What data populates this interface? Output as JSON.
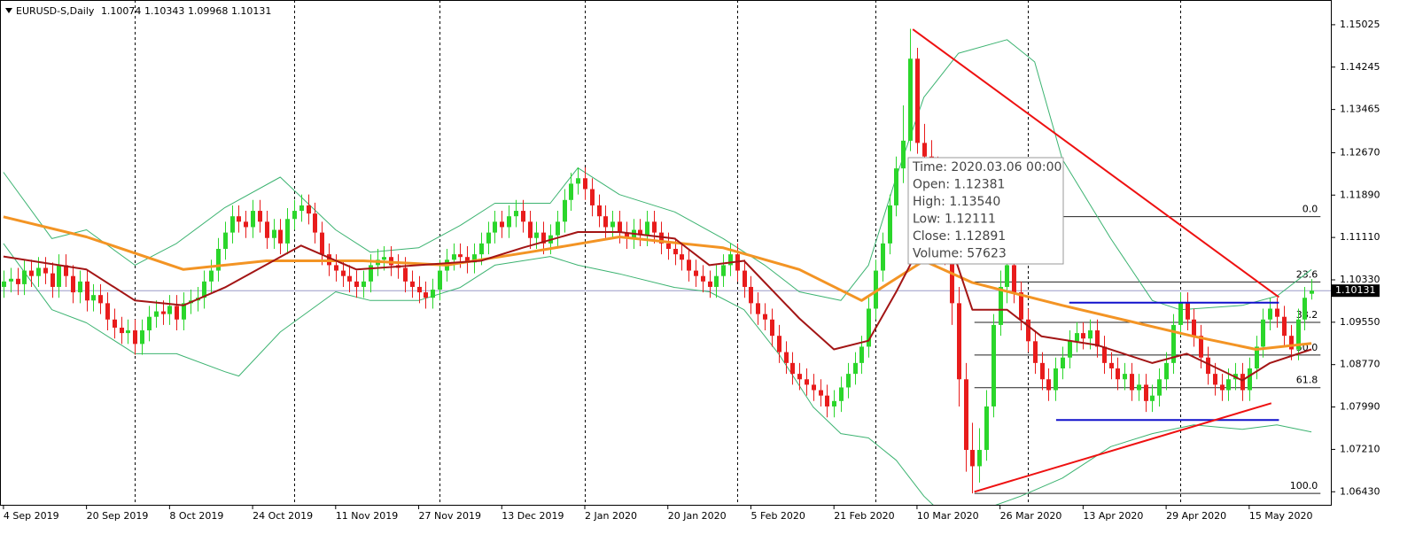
{
  "chart_data": {
    "type": "candlestick",
    "title": "EURUSD-S,Daily",
    "categories": [
      "4 Sep 2019",
      null,
      null,
      null,
      null,
      null,
      null,
      null,
      null,
      null,
      null,
      null,
      "20 Sep 2019",
      null,
      null,
      null,
      null,
      null,
      null,
      null,
      null,
      null,
      null,
      null,
      "8 Oct 2019",
      null,
      null,
      null,
      null,
      null,
      null,
      null,
      null,
      null,
      null,
      null,
      "24 Oct 2019",
      null,
      null,
      null,
      null,
      null,
      null,
      null,
      null,
      null,
      null,
      null,
      "11 Nov 2019",
      null,
      null,
      null,
      null,
      null,
      null,
      null,
      null,
      null,
      null,
      null,
      "27 Nov 2019",
      null,
      null,
      null,
      null,
      null,
      null,
      null,
      null,
      null,
      null,
      null,
      "13 Dec 2019",
      null,
      null,
      null,
      null,
      null,
      null,
      null,
      null,
      null,
      null,
      null,
      "2 Jan 2020",
      null,
      null,
      null,
      null,
      null,
      null,
      null,
      null,
      null,
      null,
      null,
      "20 Jan 2020",
      null,
      null,
      null,
      null,
      null,
      null,
      null,
      null,
      null,
      null,
      null,
      "5 Feb 2020",
      null,
      null,
      null,
      null,
      null,
      null,
      null,
      null,
      null,
      null,
      null,
      "21 Feb 2020",
      null,
      null,
      null,
      null,
      null,
      null,
      null,
      null,
      null,
      null,
      null,
      "10 Mar 2020",
      null,
      null,
      null,
      null,
      null,
      null,
      null,
      null,
      null,
      null,
      null,
      "26 Mar 2020",
      null,
      null,
      null,
      null,
      null,
      null,
      null,
      null,
      null,
      null,
      null,
      "13 Apr 2020",
      null,
      null,
      null,
      null,
      null,
      null,
      null,
      null,
      null,
      null,
      null,
      "29 Apr 2020",
      null,
      null,
      null,
      null,
      null,
      null,
      null,
      null,
      null,
      null,
      null,
      "15 May 2020",
      null,
      null,
      null,
      null,
      null,
      null,
      null,
      null,
      null
    ],
    "open": [
      1.102,
      1.103,
      1.1035,
      1.1025,
      1.105,
      1.104,
      1.1055,
      1.1045,
      1.102,
      1.106,
      1.104,
      1.101,
      1.103,
      1.0995,
      1.1005,
      1.099,
      1.096,
      1.0945,
      1.0935,
      1.094,
      1.0915,
      1.094,
      1.0965,
      1.0975,
      1.097,
      1.0985,
      1.096,
      1.099,
      1.0995,
      1.1,
      1.103,
      1.105,
      1.109,
      1.112,
      1.115,
      1.114,
      1.113,
      1.116,
      1.114,
      1.111,
      1.1125,
      1.11,
      1.1145,
      1.116,
      1.117,
      1.1155,
      1.112,
      1.108,
      1.106,
      1.105,
      1.104,
      1.103,
      1.102,
      1.103,
      1.106,
      1.107,
      1.1075,
      1.106,
      1.1055,
      1.103,
      1.102,
      1.101,
      1.1,
      1.1015,
      1.105,
      1.107,
      1.108,
      1.1075,
      1.1065,
      1.108,
      1.11,
      1.112,
      1.114,
      1.113,
      1.115,
      1.116,
      1.114,
      1.111,
      1.112,
      1.11,
      1.1115,
      1.114,
      1.118,
      1.121,
      1.122,
      1.12,
      1.117,
      1.115,
      1.113,
      1.114,
      1.112,
      1.111,
      1.1125,
      1.1115,
      1.114,
      1.112,
      1.11,
      1.109,
      1.108,
      1.107,
      1.105,
      1.104,
      1.103,
      1.102,
      1.104,
      1.106,
      1.108,
      1.105,
      1.102,
      1.099,
      1.097,
      1.096,
      1.093,
      1.09,
      1.088,
      1.086,
      1.085,
      1.084,
      1.083,
      1.082,
      1.08,
      1.081,
      1.0835,
      1.086,
      1.088,
      1.091,
      1.098,
      1.105,
      1.11,
      1.117,
      1.12381,
      1.1289,
      1.144,
      1.1285,
      1.126,
      1.124,
      1.119,
      1.11,
      1.099,
      1.085,
      1.072,
      1.069,
      1.072,
      1.08,
      1.095,
      1.102,
      1.106,
      1.101,
      1.096,
      1.092,
      1.088,
      1.085,
      1.083,
      1.087,
      1.089,
      1.092,
      1.0935,
      1.0925,
      1.094,
      1.091,
      1.088,
      1.087,
      1.085,
      1.086,
      1.083,
      1.084,
      1.081,
      1.082,
      1.085,
      1.088,
      1.095,
      1.099,
      1.096,
      1.093,
      1.089,
      1.086,
      1.084,
      1.083,
      1.085,
      1.086,
      1.083,
      1.087,
      1.091,
      1.096,
      1.098,
      1.0965,
      1.093,
      1.0905,
      1.096,
      1.10074
    ],
    "high": [
      1.105,
      1.1055,
      1.1055,
      1.107,
      1.107,
      1.1075,
      1.1075,
      1.1065,
      1.108,
      1.108,
      1.106,
      1.105,
      1.105,
      1.1025,
      1.1025,
      1.101,
      1.098,
      1.0965,
      1.096,
      1.096,
      1.096,
      1.0985,
      1.0995,
      1.0995,
      1.1005,
      1.1005,
      1.101,
      1.1015,
      1.102,
      1.105,
      1.107,
      1.111,
      1.114,
      1.117,
      1.117,
      1.116,
      1.118,
      1.118,
      1.116,
      1.1145,
      1.1145,
      1.1165,
      1.118,
      1.119,
      1.119,
      1.1175,
      1.114,
      1.11,
      1.108,
      1.107,
      1.106,
      1.105,
      1.105,
      1.108,
      1.109,
      1.1095,
      1.1095,
      1.108,
      1.1075,
      1.105,
      1.104,
      1.103,
      1.1035,
      1.107,
      1.109,
      1.11,
      1.11,
      1.1095,
      1.11,
      1.112,
      1.114,
      1.116,
      1.116,
      1.117,
      1.118,
      1.118,
      1.116,
      1.114,
      1.114,
      1.1135,
      1.116,
      1.12,
      1.123,
      1.124,
      1.124,
      1.122,
      1.119,
      1.117,
      1.116,
      1.116,
      1.114,
      1.1145,
      1.1145,
      1.116,
      1.116,
      1.114,
      1.112,
      1.111,
      1.11,
      1.109,
      1.107,
      1.106,
      1.105,
      1.106,
      1.108,
      1.11,
      1.11,
      1.107,
      1.104,
      1.101,
      1.099,
      1.098,
      1.095,
      1.092,
      1.09,
      1.088,
      1.087,
      1.086,
      1.085,
      1.084,
      1.083,
      1.0855,
      1.088,
      1.09,
      1.093,
      1.1,
      1.107,
      1.112,
      1.119,
      1.126,
      1.1354,
      1.1495,
      1.146,
      1.132,
      1.129,
      1.126,
      1.121,
      1.112,
      1.102,
      1.088,
      1.077,
      1.076,
      1.083,
      1.097,
      1.105,
      1.108,
      1.108,
      1.103,
      1.098,
      1.094,
      1.09,
      1.087,
      1.089,
      1.091,
      1.094,
      1.0955,
      1.0955,
      1.096,
      1.096,
      1.093,
      1.09,
      1.089,
      1.088,
      1.088,
      1.086,
      1.086,
      1.084,
      1.087,
      1.09,
      1.097,
      1.101,
      1.101,
      1.098,
      1.095,
      1.091,
      1.088,
      1.086,
      1.087,
      1.088,
      1.088,
      1.089,
      1.093,
      1.098,
      1.1,
      1.1,
      1.0985,
      1.095,
      1.098,
      1.102,
      1.10343
    ],
    "low": [
      1.1,
      1.101,
      1.1005,
      1.1005,
      1.102,
      1.102,
      1.1025,
      1.1,
      1.1,
      1.102,
      1.099,
      1.099,
      1.0975,
      1.0975,
      1.097,
      1.094,
      1.0925,
      1.0915,
      1.0915,
      1.0895,
      1.0895,
      1.092,
      1.0945,
      1.095,
      1.095,
      1.094,
      1.094,
      1.097,
      1.0975,
      1.098,
      1.101,
      1.103,
      1.107,
      1.11,
      1.112,
      1.111,
      1.111,
      1.112,
      1.109,
      1.109,
      1.108,
      1.108,
      1.1125,
      1.114,
      1.1135,
      1.11,
      1.106,
      1.104,
      1.103,
      1.102,
      1.101,
      1.1,
      1.1,
      1.101,
      1.104,
      1.105,
      1.104,
      1.1035,
      1.101,
      1.1,
      1.099,
      1.098,
      1.098,
      1.0995,
      1.103,
      1.105,
      1.1055,
      1.1045,
      1.1045,
      1.106,
      1.108,
      1.11,
      1.111,
      1.111,
      1.113,
      1.112,
      1.109,
      1.109,
      1.108,
      1.108,
      1.1095,
      1.112,
      1.116,
      1.119,
      1.118,
      1.115,
      1.113,
      1.111,
      1.111,
      1.11,
      1.109,
      1.109,
      1.1095,
      1.1095,
      1.11,
      1.108,
      1.107,
      1.106,
      1.105,
      1.103,
      1.102,
      1.101,
      1.1,
      1.1,
      1.102,
      1.104,
      1.103,
      1.1,
      1.097,
      1.095,
      1.094,
      1.091,
      1.088,
      1.086,
      1.084,
      1.083,
      1.082,
      1.081,
      1.08,
      1.078,
      1.078,
      1.079,
      1.0815,
      1.084,
      1.086,
      1.089,
      1.096,
      1.103,
      1.108,
      1.115,
      1.12111,
      1.127,
      1.1265,
      1.124,
      1.12,
      1.116,
      1.106,
      1.095,
      1.08,
      1.068,
      1.064,
      1.066,
      1.07,
      1.078,
      1.093,
      1.099,
      1.099,
      1.094,
      1.09,
      1.086,
      1.083,
      1.081,
      1.081,
      1.085,
      1.087,
      1.09,
      1.0905,
      1.0905,
      1.089,
      1.086,
      1.085,
      1.083,
      1.083,
      1.081,
      1.081,
      1.079,
      1.079,
      1.08,
      1.083,
      1.086,
      1.093,
      1.094,
      1.091,
      1.087,
      1.084,
      1.082,
      1.081,
      1.081,
      1.083,
      1.081,
      1.081,
      1.085,
      1.089,
      1.094,
      1.0945,
      1.091,
      1.0885,
      1.0885,
      1.094,
      1.09968
    ],
    "close": [
      1.103,
      1.1035,
      1.1025,
      1.105,
      1.104,
      1.1055,
      1.1045,
      1.102,
      1.106,
      1.104,
      1.101,
      1.103,
      1.0995,
      1.1005,
      1.099,
      1.096,
      1.0945,
      1.0935,
      1.094,
      1.0915,
      1.094,
      1.0965,
      1.0975,
      1.097,
      1.0985,
      1.096,
      1.099,
      1.0995,
      1.1,
      1.103,
      1.105,
      1.109,
      1.112,
      1.115,
      1.114,
      1.113,
      1.116,
      1.114,
      1.111,
      1.1125,
      1.11,
      1.1145,
      1.116,
      1.117,
      1.1155,
      1.112,
      1.108,
      1.106,
      1.105,
      1.104,
      1.103,
      1.102,
      1.103,
      1.106,
      1.107,
      1.1075,
      1.106,
      1.1055,
      1.103,
      1.102,
      1.101,
      1.1,
      1.1015,
      1.105,
      1.107,
      1.108,
      1.1075,
      1.1065,
      1.108,
      1.11,
      1.112,
      1.114,
      1.113,
      1.115,
      1.116,
      1.114,
      1.111,
      1.112,
      1.11,
      1.1115,
      1.114,
      1.118,
      1.121,
      1.122,
      1.12,
      1.117,
      1.115,
      1.113,
      1.114,
      1.112,
      1.111,
      1.1125,
      1.1115,
      1.114,
      1.112,
      1.11,
      1.109,
      1.108,
      1.107,
      1.105,
      1.104,
      1.103,
      1.102,
      1.104,
      1.106,
      1.108,
      1.105,
      1.102,
      1.099,
      1.097,
      1.096,
      1.093,
      1.09,
      1.088,
      1.086,
      1.085,
      1.084,
      1.083,
      1.082,
      1.08,
      1.081,
      1.0835,
      1.086,
      1.088,
      1.091,
      1.098,
      1.105,
      1.11,
      1.117,
      1.12381,
      1.12891,
      1.144,
      1.1285,
      1.126,
      1.124,
      1.119,
      1.11,
      1.099,
      1.085,
      1.072,
      1.069,
      1.072,
      1.08,
      1.095,
      1.102,
      1.106,
      1.101,
      1.096,
      1.092,
      1.088,
      1.085,
      1.083,
      1.087,
      1.089,
      1.092,
      1.0935,
      1.0925,
      1.094,
      1.091,
      1.088,
      1.087,
      1.085,
      1.086,
      1.083,
      1.084,
      1.081,
      1.082,
      1.085,
      1.088,
      1.095,
      1.099,
      1.096,
      1.093,
      1.089,
      1.086,
      1.084,
      1.083,
      1.085,
      1.086,
      1.083,
      1.087,
      1.091,
      1.096,
      1.098,
      1.0965,
      1.093,
      1.0905,
      1.096,
      1.1,
      1.10131
    ],
    "up_color": "#2bd62b",
    "down_color": "#e81c1c",
    "xlim": [
      -0.5,
      191.8
    ],
    "ylim": [
      1.0619,
      1.1548
    ],
    "yticks": [
      1.15025,
      1.14245,
      1.13465,
      {
        "value": 1.1267,
        "label": "1.12670"
      },
      {
        "value": 1.1189,
        "label": "1.11890"
      },
      {
        "value": 1.1111,
        "label": "1.11110"
      },
      {
        "value": 1.1033,
        "label": "1.10330"
      },
      {
        "value": 1.0955,
        "label": "1.09550"
      },
      {
        "value": 1.0877,
        "label": "1.08770"
      },
      {
        "value": 1.0799,
        "label": "1.07990"
      },
      {
        "value": 1.0721,
        "label": "1.07210"
      },
      {
        "value": 1.0643,
        "label": "1.06430"
      }
    ],
    "vgrid": [
      19,
      42,
      63,
      84,
      106,
      126,
      148,
      170
    ],
    "indicators": [
      {
        "color": "#3cb371",
        "width": 1,
        "x": [
          0,
          7,
          12,
          19,
          25,
          32,
          40,
          48,
          53,
          60,
          66,
          71,
          79,
          83,
          89,
          97,
          104,
          110,
          115,
          121,
          125,
          129,
          133,
          138,
          145,
          149,
          153,
          160,
          166,
          170,
          179,
          184,
          189
        ],
        "values": [
          1.1231,
          1.1109,
          1.1125,
          1.106,
          1.11,
          1.1166,
          1.1222,
          1.1125,
          1.1084,
          1.1092,
          1.1133,
          1.1174,
          1.1174,
          1.1239,
          1.119,
          1.1158,
          1.1109,
          1.106,
          1.1011,
          1.0995,
          1.106,
          1.1222,
          1.1369,
          1.145,
          1.1475,
          1.1434,
          1.1255,
          1.1109,
          1.0995,
          1.0978,
          1.0986,
          1.1003,
          1.1052
        ]
      },
      {
        "color": "#3cb371",
        "width": 1,
        "x": [
          0,
          7,
          12,
          19,
          25,
          32,
          34,
          40,
          48,
          53,
          60,
          66,
          71,
          79,
          83,
          89,
          97,
          102,
          107,
          112,
          117,
          121,
          125,
          129,
          133,
          137,
          140,
          147,
          153,
          160,
          166,
          172,
          179,
          184,
          189
        ],
        "values": [
          1.11,
          1.0978,
          1.0954,
          1.0897,
          1.0897,
          1.0864,
          1.0856,
          1.0937,
          1.1011,
          1.0995,
          1.0995,
          1.1019,
          1.106,
          1.1076,
          1.106,
          1.1044,
          1.1019,
          1.1011,
          1.0978,
          1.0897,
          1.0799,
          1.075,
          1.0742,
          1.0701,
          1.0635,
          1.0586,
          1.0603,
          1.0635,
          1.0668,
          1.0726,
          1.075,
          1.0766,
          1.0758,
          1.0766,
          1.0753
        ]
      },
      {
        "color": "#f39424",
        "width": 3,
        "x": [
          0,
          12,
          26,
          38,
          52,
          64,
          76,
          89,
          104,
          115,
          124,
          133,
          140,
          153,
          172,
          181,
          189
        ],
        "values": [
          1.1149,
          1.1112,
          1.1052,
          1.1068,
          1.1068,
          1.106,
          1.1084,
          1.1112,
          1.1092,
          1.1052,
          1.0995,
          1.1068,
          1.1028,
          1.0986,
          1.0929,
          1.0905,
          1.0916
        ]
      },
      {
        "color": "#a31515",
        "width": 2,
        "x": [
          0,
          12,
          19,
          26,
          32,
          43,
          51,
          60,
          69,
          75,
          83,
          89,
          97,
          102,
          107,
          115,
          120,
          125,
          129,
          133,
          137,
          140,
          145,
          150,
          158,
          166,
          171,
          179,
          183,
          189
        ],
        "values": [
          1.1076,
          1.1052,
          1.0995,
          1.0986,
          1.1019,
          1.1096,
          1.1052,
          1.106,
          1.1068,
          1.1092,
          1.1121,
          1.1121,
          1.1109,
          1.106,
          1.1068,
          1.0962,
          1.0905,
          1.0921,
          1.1011,
          1.1109,
          1.1092,
          1.0978,
          1.0978,
          1.0929,
          1.0913,
          1.088,
          1.0897,
          1.0848,
          1.088,
          1.0905
        ]
      }
    ],
    "trendlines": [
      {
        "color": "#ee1111",
        "x": [
          131.4,
          184.3
        ],
        "y": [
          1.1494,
          1.1001
        ]
      },
      {
        "color": "#ee1111",
        "x": [
          140.3,
          183.2
        ],
        "y": [
          1.0643,
          1.0806
        ]
      }
    ],
    "levels": [
      {
        "color": "#1010cc",
        "x": [
          154,
          184.3
        ],
        "y": 1.0991
      },
      {
        "color": "#1010cc",
        "x": [
          152.1,
          184.3
        ],
        "y": 1.0775
      }
    ],
    "fibonacci": {
      "color": "#222222",
      "x": [
        140.3,
        190.3
      ],
      "high": 1.11494,
      "low": 1.064,
      "levels": [
        {
          "value": 0,
          "label": "0.0"
        },
        23.6,
        38.2,
        {
          "value": 50,
          "label": "50.0"
        },
        61.8,
        {
          "value": 100,
          "label": "100.0"
        }
      ]
    },
    "tooltip": [
      "Time: 2020.03.06 00:00",
      "Open: 1.12381",
      "High: 1.13540",
      "Low:  1.12111",
      "Close: 1.12891",
      "Volume: 57623"
    ]
  }
}
